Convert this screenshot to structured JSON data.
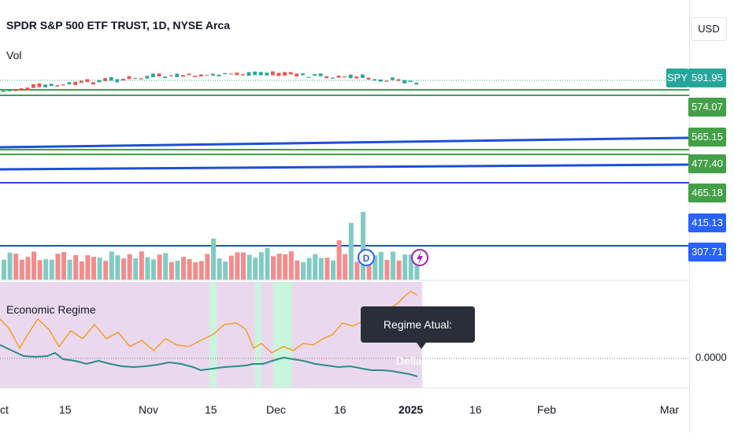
{
  "header": {
    "symbol_title": "SPDR S&P 500 ETF TRUST, 1D, NYSE Arca",
    "volume_label": "Vol"
  },
  "currency_button": "USD",
  "symbol_tag": "SPY",
  "price_scale": {
    "labels": [
      {
        "text": "591.95",
        "color": "#26a69a"
      },
      {
        "text": "574.07",
        "color": "#43a047"
      },
      {
        "text": "565.15",
        "color": "#43a047"
      },
      {
        "text": "477.40",
        "color": "#43a047"
      },
      {
        "text": "465.18",
        "color": "#43a047"
      },
      {
        "text": "415.13",
        "color": "#2962ff"
      },
      {
        "text": "307.71",
        "color": "#2962ff"
      }
    ]
  },
  "indicator": {
    "title": "Economic Regime",
    "zero_label": "0.0000",
    "tooltip": "Regime Atual: Deflation"
  },
  "time_axis": {
    "ticks": [
      "ct",
      "15",
      "Nov",
      "15",
      "Dec",
      "16",
      "2025",
      "16",
      "Feb",
      "Mar"
    ]
  },
  "event_badges": {
    "dividend_icon": "D",
    "earnings_icon": "lightning"
  },
  "colors": {
    "up": "#26a69a",
    "down": "#ef5350",
    "volume_up": "#80cbc4",
    "volume_down": "#f48c8c",
    "support_green": "#43a047",
    "trend_blue": "#1e4fd8",
    "regime_bg": "#ead9ee",
    "regime_highlight": "#c8f5dc",
    "line_orange": "#f59d27",
    "line_teal": "#2b8a88"
  }
}
